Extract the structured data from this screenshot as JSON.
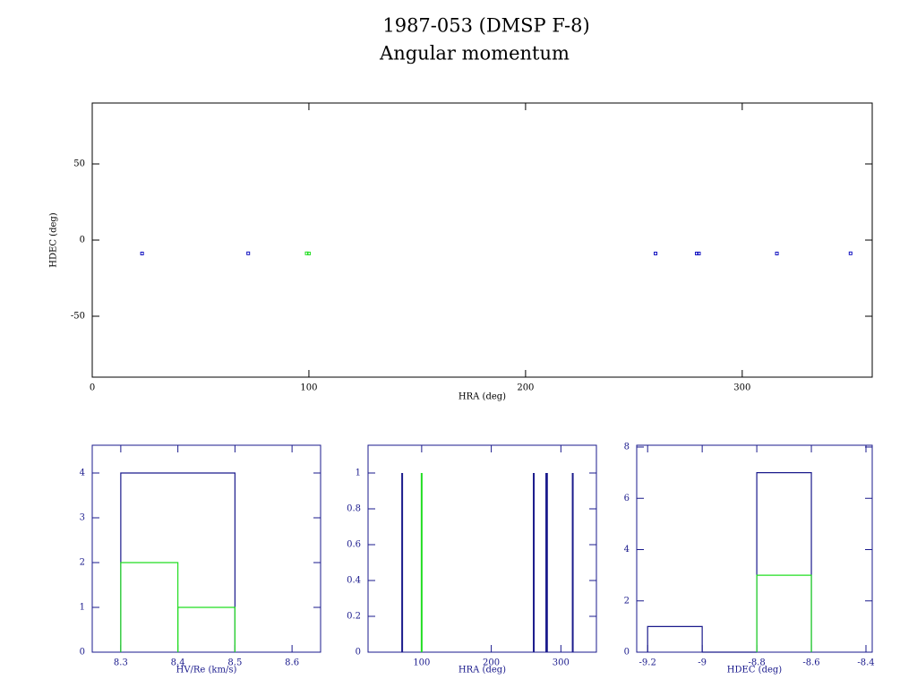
{
  "title": "1987-053 (DMSP F-8)",
  "subtitle": "Angular momentum",
  "chart_data": [
    {
      "type": "scatter",
      "x_label": "HRA (deg)",
      "y_label": "HDEC (deg)",
      "xlim": [
        0,
        360
      ],
      "ylim": [
        -90,
        90
      ],
      "xticks": [
        0,
        100,
        200,
        300
      ],
      "yticks": [
        -50,
        0,
        50
      ],
      "axis_color": "#000000",
      "series": [
        {
          "color": "#1010c0",
          "x": [
            23,
            72,
            260,
            279,
            280,
            316,
            350
          ],
          "y": [
            -8.8,
            -8.7,
            -8.8,
            -8.8,
            -8.8,
            -8.8,
            -8.7
          ]
        },
        {
          "color": "#22dd22",
          "x": [
            99,
            100
          ],
          "y": [
            -8.7,
            -8.8
          ]
        }
      ]
    },
    {
      "type": "histogram",
      "x_label": "HV/Re (km/s)",
      "xlim": [
        8.25,
        8.65
      ],
      "ylim": [
        0,
        4.62
      ],
      "xticks": [
        8.3,
        8.4,
        8.5,
        8.6
      ],
      "yticks": [
        0,
        1,
        2,
        3,
        4
      ],
      "axis_color": "#1a1a8c",
      "series": [
        {
          "color": "#1a1a8c",
          "bins": [
            8.3,
            8.5
          ],
          "counts": [
            4
          ]
        },
        {
          "color": "#22dd22",
          "bins": [
            8.3,
            8.4,
            8.5
          ],
          "counts": [
            2,
            1
          ]
        }
      ]
    },
    {
      "type": "spike",
      "x_label": "HRA (deg)",
      "xlim": [
        23,
        351
      ],
      "ylim": [
        0,
        1.155
      ],
      "xticks": [
        100,
        200,
        300
      ],
      "yticks": [
        0,
        0.2,
        0.4,
        0.6,
        0.8,
        1
      ],
      "axis_color": "#1a1a8c",
      "series": [
        {
          "color": "#1a1a8c",
          "x": [
            72,
            261,
            279,
            280,
            317
          ],
          "values": [
            1,
            1,
            1,
            1,
            1
          ]
        },
        {
          "color": "#22dd22",
          "x": [
            100
          ],
          "values": [
            1
          ]
        }
      ]
    },
    {
      "type": "histogram",
      "x_label": "HDEC (deg)",
      "xlim": [
        -9.24,
        -8.377
      ],
      "ylim": [
        0,
        8.07
      ],
      "xticks": [
        -9.2,
        -9,
        -8.8,
        -8.6,
        -8.4
      ],
      "yticks": [
        0,
        2,
        4,
        6,
        8
      ],
      "axis_color": "#1a1a8c",
      "series": [
        {
          "color": "#1a1a8c",
          "bins": [
            -9.2,
            -9,
            -8.8,
            -8.6
          ],
          "counts": [
            1,
            0,
            7
          ]
        },
        {
          "color": "#22dd22",
          "bins": [
            -8.8,
            -8.6
          ],
          "counts": [
            3
          ]
        }
      ]
    }
  ]
}
